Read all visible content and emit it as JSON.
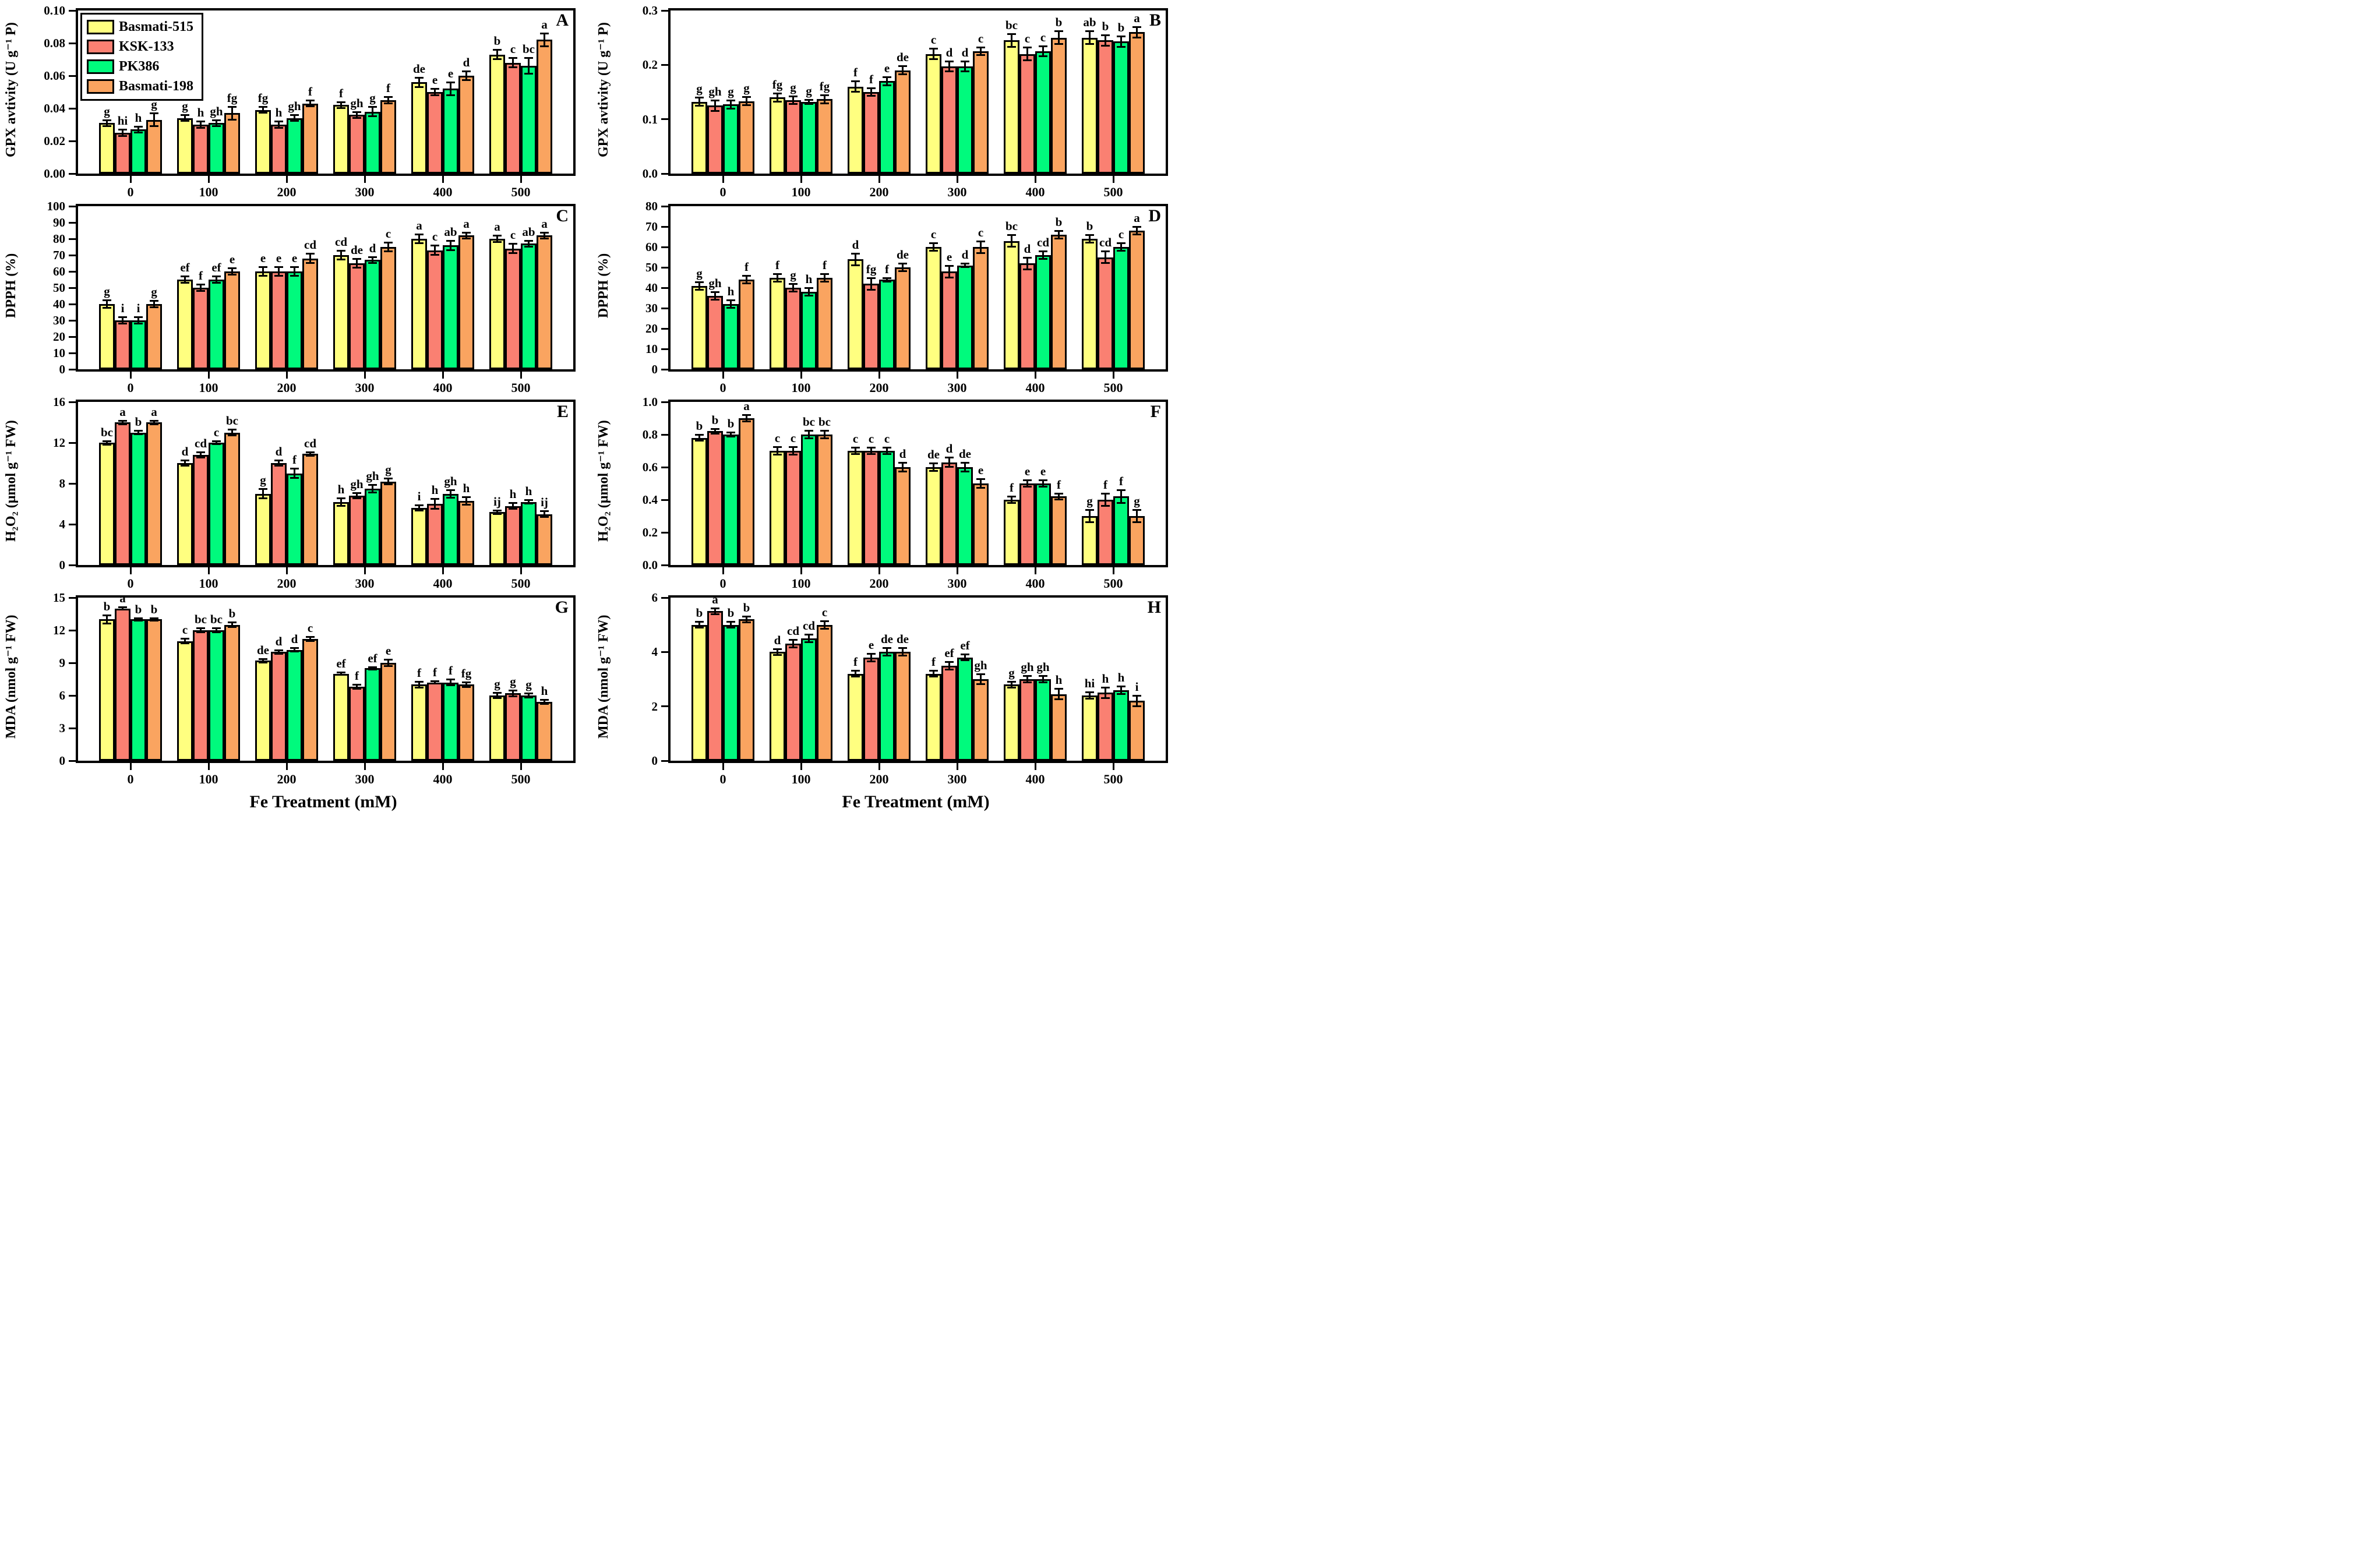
{
  "figure": {
    "x_axis_title": "Fe Treatment (mM)",
    "categories": [
      "0",
      "100",
      "200",
      "300",
      "400",
      "500"
    ],
    "legend": [
      {
        "label": "Basmati-515",
        "color": "#FFFF80"
      },
      {
        "label": "KSK-133",
        "color": "#FA8072"
      },
      {
        "label": "PK386",
        "color": "#00FA7D"
      },
      {
        "label": "Basmati-198",
        "color": "#FAA460"
      }
    ]
  },
  "chart_data": [
    {
      "type": "bar",
      "panel": "A",
      "ylabel": "GPX avtivity (U g⁻¹ P)",
      "ylim": [
        0,
        0.1
      ],
      "yticks": [
        "0.00",
        "0.02",
        "0.04",
        "0.06",
        "0.08",
        "0.10"
      ],
      "categories": [
        "0",
        "100",
        "200",
        "300",
        "400",
        "500"
      ],
      "show_legend": true,
      "x_title": "",
      "series": [
        {
          "name": "Basmati-515",
          "color": "#FFFF80",
          "values": [
            0.031,
            0.034,
            0.039,
            0.042,
            0.056,
            0.073
          ],
          "errors": [
            0.002,
            0.002,
            0.002,
            0.002,
            0.003,
            0.003
          ],
          "letters": [
            "g",
            "g",
            "fg",
            "f",
            "de",
            "b"
          ]
        },
        {
          "name": "KSK-133",
          "color": "#FA8072",
          "values": [
            0.025,
            0.03,
            0.03,
            0.036,
            0.05,
            0.068
          ],
          "errors": [
            0.002,
            0.002,
            0.002,
            0.002,
            0.002,
            0.003
          ],
          "letters": [
            "hi",
            "h",
            "h",
            "gh",
            "e",
            "c"
          ]
        },
        {
          "name": "PK386",
          "color": "#00FA7D",
          "values": [
            0.027,
            0.031,
            0.034,
            0.038,
            0.052,
            0.066
          ],
          "errors": [
            0.002,
            0.002,
            0.002,
            0.003,
            0.004,
            0.005
          ],
          "letters": [
            "h",
            "gh",
            "gh",
            "g",
            "e",
            "bc"
          ]
        },
        {
          "name": "Basmati-198",
          "color": "#FAA460",
          "values": [
            0.033,
            0.037,
            0.043,
            0.045,
            0.06,
            0.082
          ],
          "errors": [
            0.004,
            0.004,
            0.002,
            0.002,
            0.003,
            0.004
          ],
          "letters": [
            "g",
            "fg",
            "f",
            "f",
            "d",
            "a"
          ]
        }
      ]
    },
    {
      "type": "bar",
      "panel": "B",
      "ylabel": "GPX avtivity (U g⁻¹ P)",
      "ylim": [
        0,
        0.3
      ],
      "yticks": [
        "0.0",
        "0.1",
        "0.2",
        "0.3"
      ],
      "categories": [
        "0",
        "100",
        "200",
        "300",
        "400",
        "500"
      ],
      "show_legend": false,
      "x_title": "",
      "series": [
        {
          "name": "Basmati-515",
          "color": "#FFFF80",
          "values": [
            0.132,
            0.14,
            0.16,
            0.22,
            0.245,
            0.25
          ],
          "errors": [
            0.008,
            0.008,
            0.01,
            0.01,
            0.012,
            0.012
          ],
          "letters": [
            "g",
            "fg",
            "f",
            "c",
            "bc",
            "ab"
          ]
        },
        {
          "name": "KSK-133",
          "color": "#FA8072",
          "values": [
            0.125,
            0.135,
            0.15,
            0.197,
            0.22,
            0.245
          ],
          "errors": [
            0.01,
            0.008,
            0.008,
            0.01,
            0.012,
            0.01
          ],
          "letters": [
            "gh",
            "g",
            "f",
            "d",
            "c",
            "b"
          ]
        },
        {
          "name": "PK386",
          "color": "#00FA7D",
          "values": [
            0.127,
            0.132,
            0.17,
            0.197,
            0.225,
            0.243
          ],
          "errors": [
            0.008,
            0.004,
            0.008,
            0.01,
            0.01,
            0.01
          ],
          "letters": [
            "g",
            "g",
            "e",
            "d",
            "c",
            "b"
          ]
        },
        {
          "name": "Basmati-198",
          "color": "#FAA460",
          "values": [
            0.133,
            0.137,
            0.19,
            0.225,
            0.25,
            0.26
          ],
          "errors": [
            0.008,
            0.008,
            0.008,
            0.008,
            0.012,
            0.01
          ],
          "letters": [
            "g",
            "fg",
            "de",
            "c",
            "b",
            "a"
          ]
        }
      ]
    },
    {
      "type": "bar",
      "panel": "C",
      "ylabel": "DPPH (%)",
      "ylim": [
        0,
        100
      ],
      "yticks": [
        "0",
        "10",
        "20",
        "30",
        "40",
        "50",
        "60",
        "70",
        "80",
        "90",
        "100"
      ],
      "categories": [
        "0",
        "100",
        "200",
        "300",
        "400",
        "500"
      ],
      "show_legend": false,
      "x_title": "",
      "series": [
        {
          "name": "Basmati-515",
          "color": "#FFFF80",
          "values": [
            40,
            55,
            60,
            70,
            80,
            80
          ],
          "errors": [
            2.5,
            2,
            3,
            3,
            3,
            2
          ],
          "letters": [
            "g",
            "ef",
            "e",
            "cd",
            "a",
            "a"
          ]
        },
        {
          "name": "KSK-133",
          "color": "#FA8072",
          "values": [
            30,
            50,
            60,
            65,
            73,
            74
          ],
          "errors": [
            2,
            2,
            3,
            3,
            3,
            3
          ],
          "letters": [
            "i",
            "f",
            "e",
            "de",
            "c",
            "c"
          ]
        },
        {
          "name": "PK386",
          "color": "#00FA7D",
          "values": [
            30,
            55,
            60,
            67,
            76,
            77
          ],
          "errors": [
            2,
            2,
            3,
            2,
            3,
            2
          ],
          "letters": [
            "i",
            "ef",
            "e",
            "d",
            "ab",
            "ab"
          ]
        },
        {
          "name": "Basmati-198",
          "color": "#FAA460",
          "values": [
            40,
            60,
            68,
            75,
            82,
            82
          ],
          "errors": [
            2,
            2,
            3,
            3,
            2,
            2
          ],
          "letters": [
            "g",
            "e",
            "cd",
            "c",
            "a",
            "a"
          ]
        }
      ]
    },
    {
      "type": "bar",
      "panel": "D",
      "ylabel": "DPPH (%)",
      "ylim": [
        0,
        80
      ],
      "yticks": [
        "0",
        "10",
        "20",
        "30",
        "40",
        "50",
        "60",
        "70",
        "80"
      ],
      "categories": [
        "0",
        "100",
        "200",
        "300",
        "400",
        "500"
      ],
      "show_legend": false,
      "x_title": "",
      "series": [
        {
          "name": "Basmati-515",
          "color": "#FFFF80",
          "values": [
            41,
            45,
            54,
            60,
            63,
            64
          ],
          "errors": [
            2,
            2,
            3,
            2,
            3,
            2
          ],
          "letters": [
            "g",
            "f",
            "d",
            "c",
            "bc",
            "b"
          ]
        },
        {
          "name": "KSK-133",
          "color": "#FA8072",
          "values": [
            36,
            40,
            42,
            48,
            52,
            55
          ],
          "errors": [
            2,
            2,
            3,
            3,
            3,
            3
          ],
          "letters": [
            "gh",
            "g",
            "fg",
            "e",
            "d",
            "cd"
          ]
        },
        {
          "name": "PK386",
          "color": "#00FA7D",
          "values": [
            32,
            38,
            44,
            51,
            56,
            60
          ],
          "errors": [
            2,
            2,
            1,
            1,
            2,
            2
          ],
          "letters": [
            "h",
            "h",
            "f",
            "d",
            "cd",
            "c"
          ]
        },
        {
          "name": "Basmati-198",
          "color": "#FAA460",
          "values": [
            44,
            45,
            50,
            60,
            66,
            68
          ],
          "errors": [
            2,
            2,
            2,
            3,
            2,
            2
          ],
          "letters": [
            "f",
            "f",
            "de",
            "c",
            "b",
            "a"
          ]
        }
      ]
    },
    {
      "type": "bar",
      "panel": "E",
      "ylabel": "H₂O₂ (µmol g⁻¹ FW)",
      "ylim": [
        0,
        16
      ],
      "yticks": [
        "0",
        "4",
        "8",
        "12",
        "16"
      ],
      "categories": [
        "0",
        "100",
        "200",
        "300",
        "400",
        "500"
      ],
      "show_legend": false,
      "x_title": "",
      "series": [
        {
          "name": "Basmati-515",
          "color": "#FFFF80",
          "values": [
            12,
            10,
            7,
            6.2,
            5.6,
            5.2
          ],
          "errors": [
            0.2,
            0.3,
            0.5,
            0.4,
            0.3,
            0.2
          ],
          "letters": [
            "bc",
            "d",
            "g",
            "h",
            "i",
            "ij"
          ]
        },
        {
          "name": "KSK-133",
          "color": "#FA8072",
          "values": [
            14,
            10.8,
            10,
            6.8,
            6.0,
            5.8
          ],
          "errors": [
            0.2,
            0.3,
            0.3,
            0.3,
            0.5,
            0.3
          ],
          "letters": [
            "a",
            "cd",
            "d",
            "gh",
            "h",
            "h"
          ]
        },
        {
          "name": "PK386",
          "color": "#00FA7D",
          "values": [
            13,
            12,
            9,
            7.5,
            7.0,
            6.2
          ],
          "errors": [
            0.2,
            0.15,
            0.5,
            0.4,
            0.4,
            0.2
          ],
          "letters": [
            "b",
            "c",
            "f",
            "gh",
            "gh",
            "h"
          ]
        },
        {
          "name": "Basmati-198",
          "color": "#FAA460",
          "values": [
            14,
            13,
            10.9,
            8.2,
            6.3,
            5.0
          ],
          "errors": [
            0.2,
            0.3,
            0.2,
            0.3,
            0.4,
            0.3
          ],
          "letters": [
            "a",
            "bc",
            "cd",
            "g",
            "h",
            "ij"
          ]
        }
      ]
    },
    {
      "type": "bar",
      "panel": "F",
      "ylabel": "H₂O₂ (µmol g⁻¹ FW)",
      "ylim": [
        0,
        1.0
      ],
      "yticks": [
        "0.0",
        "0.2",
        "0.4",
        "0.6",
        "0.8",
        "1.0"
      ],
      "categories": [
        "0",
        "100",
        "200",
        "300",
        "400",
        "500"
      ],
      "show_legend": false,
      "x_title": "",
      "series": [
        {
          "name": "Basmati-515",
          "color": "#FFFF80",
          "values": [
            0.78,
            0.7,
            0.7,
            0.6,
            0.4,
            0.3
          ],
          "errors": [
            0.02,
            0.025,
            0.02,
            0.025,
            0.02,
            0.04
          ],
          "letters": [
            "b",
            "c",
            "c",
            "de",
            "f",
            "g"
          ]
        },
        {
          "name": "KSK-133",
          "color": "#FA8072",
          "values": [
            0.82,
            0.7,
            0.7,
            0.63,
            0.5,
            0.4
          ],
          "errors": [
            0.015,
            0.025,
            0.02,
            0.03,
            0.02,
            0.04
          ],
          "letters": [
            "b",
            "c",
            "c",
            "d",
            "e",
            "f"
          ]
        },
        {
          "name": "PK386",
          "color": "#00FA7D",
          "values": [
            0.8,
            0.8,
            0.7,
            0.6,
            0.5,
            0.42
          ],
          "errors": [
            0.015,
            0.025,
            0.02,
            0.03,
            0.02,
            0.04
          ],
          "letters": [
            "b",
            "bc",
            "c",
            "de",
            "e",
            "f"
          ]
        },
        {
          "name": "Basmati-198",
          "color": "#FAA460",
          "values": [
            0.9,
            0.8,
            0.6,
            0.5,
            0.42,
            0.3
          ],
          "errors": [
            0.02,
            0.025,
            0.03,
            0.03,
            0.02,
            0.04
          ],
          "letters": [
            "a",
            "bc",
            "d",
            "e",
            "f",
            "g"
          ]
        }
      ]
    },
    {
      "type": "bar",
      "panel": "G",
      "ylabel": "MDA (nmol g⁻¹ FW)",
      "ylim": [
        0,
        15
      ],
      "yticks": [
        "0",
        "3",
        "6",
        "9",
        "12",
        "15"
      ],
      "categories": [
        "0",
        "100",
        "200",
        "300",
        "400",
        "500"
      ],
      "show_legend": false,
      "x_title": "Fe Treatment (mM)",
      "series": [
        {
          "name": "Basmati-515",
          "color": "#FFFF80",
          "values": [
            13,
            11,
            9.2,
            8.0,
            7.0,
            6.0
          ],
          "errors": [
            0.4,
            0.25,
            0.2,
            0.15,
            0.3,
            0.25
          ],
          "letters": [
            "b",
            "c",
            "de",
            "ef",
            "f",
            "g"
          ]
        },
        {
          "name": "KSK-133",
          "color": "#FA8072",
          "values": [
            14,
            12,
            10,
            6.8,
            7.2,
            6.2
          ],
          "errors": [
            0.15,
            0.2,
            0.2,
            0.2,
            0.15,
            0.3
          ],
          "letters": [
            "a",
            "bc",
            "d",
            "f",
            "f",
            "g"
          ]
        },
        {
          "name": "PK386",
          "color": "#00FA7D",
          "values": [
            13,
            12,
            10.2,
            8.5,
            7.2,
            6.0
          ],
          "errors": [
            0.15,
            0.2,
            0.2,
            0.15,
            0.3,
            0.2
          ],
          "letters": [
            "b",
            "bc",
            "d",
            "ef",
            "f",
            "g"
          ]
        },
        {
          "name": "Basmati-198",
          "color": "#FAA460",
          "values": [
            13,
            12.5,
            11.2,
            9.0,
            7.0,
            5.4
          ],
          "errors": [
            0.15,
            0.25,
            0.2,
            0.3,
            0.25,
            0.2
          ],
          "letters": [
            "b",
            "b",
            "c",
            "e",
            "fg",
            "h"
          ]
        }
      ]
    },
    {
      "type": "bar",
      "panel": "H",
      "ylabel": "MDA (nmol g⁻¹ FW)",
      "ylim": [
        0,
        6
      ],
      "yticks": [
        "0",
        "2",
        "4",
        "6"
      ],
      "categories": [
        "0",
        "100",
        "200",
        "300",
        "400",
        "500"
      ],
      "show_legend": false,
      "x_title": "Fe Treatment (mM)",
      "series": [
        {
          "name": "Basmati-515",
          "color": "#FFFF80",
          "values": [
            5.0,
            4.0,
            3.2,
            3.2,
            2.8,
            2.4
          ],
          "errors": [
            0.12,
            0.12,
            0.12,
            0.12,
            0.12,
            0.12
          ],
          "letters": [
            "b",
            "d",
            "f",
            "f",
            "g",
            "hi"
          ]
        },
        {
          "name": "KSK-133",
          "color": "#FA8072",
          "values": [
            5.5,
            4.3,
            3.8,
            3.5,
            3.0,
            2.5
          ],
          "errors": [
            0.12,
            0.15,
            0.15,
            0.15,
            0.12,
            0.2
          ],
          "letters": [
            "a",
            "cd",
            "e",
            "ef",
            "gh",
            "h"
          ]
        },
        {
          "name": "PK386",
          "color": "#00FA7D",
          "values": [
            5.0,
            4.5,
            4.0,
            3.8,
            3.0,
            2.6
          ],
          "errors": [
            0.12,
            0.15,
            0.15,
            0.12,
            0.12,
            0.15
          ],
          "letters": [
            "b",
            "cd",
            "de",
            "ef",
            "gh",
            "h"
          ]
        },
        {
          "name": "Basmati-198",
          "color": "#FAA460",
          "values": [
            5.2,
            5.0,
            4.0,
            3.0,
            2.45,
            2.2
          ],
          "errors": [
            0.12,
            0.15,
            0.15,
            0.2,
            0.2,
            0.2
          ],
          "letters": [
            "b",
            "c",
            "de",
            "gh",
            "h",
            "i"
          ]
        }
      ]
    }
  ]
}
